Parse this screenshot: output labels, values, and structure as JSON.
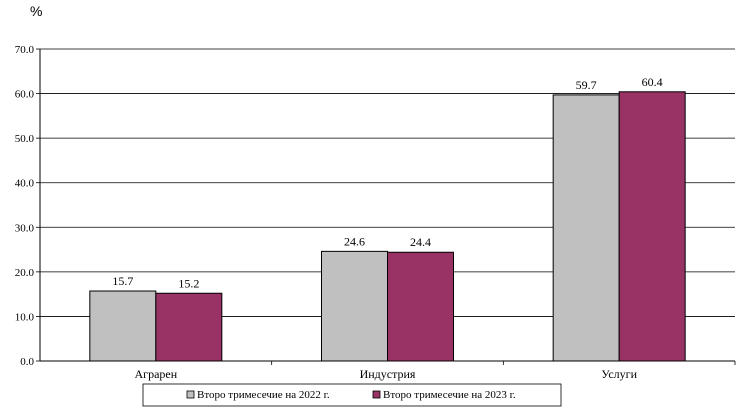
{
  "chart_data": {
    "type": "bar",
    "unit_label": "%",
    "categories": [
      "Аграрен",
      "Индустрия",
      "Услуги"
    ],
    "series": [
      {
        "name": "Второ тримесечие на 2022 г.",
        "values": [
          15.7,
          24.6,
          59.7
        ],
        "color": "#c0c0c0"
      },
      {
        "name": "Второ тримесечие на 2023 г.",
        "values": [
          15.2,
          24.4,
          60.4
        ],
        "color": "#993366"
      }
    ],
    "ylim": [
      0,
      70
    ],
    "yticks": [
      "0.0",
      "10.0",
      "20.0",
      "30.0",
      "40.0",
      "50.0",
      "60.0",
      "70.0"
    ],
    "grid": true,
    "legend_position": "bottom"
  }
}
